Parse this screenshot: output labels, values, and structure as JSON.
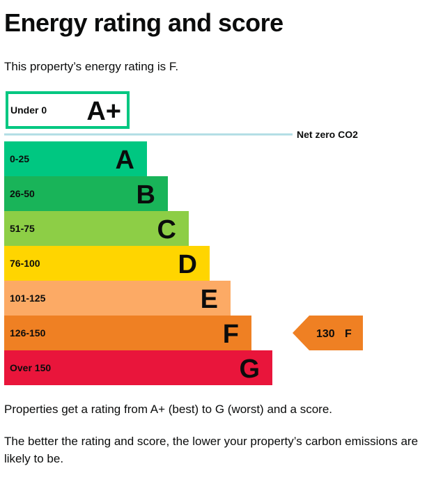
{
  "page": {
    "heading": "Energy rating and score",
    "intro": "This property’s energy rating is F.",
    "paragraph_1": "Properties get a rating from A+ (best) to G (worst) and a score.",
    "paragraph_2": "The better the rating and score, the lower your property’s carbon emissions are likely to be."
  },
  "chart_data": {
    "type": "bar",
    "top_band": {
      "range": "Under 0",
      "letter": "A+",
      "color": "#00c781",
      "style": "outlined"
    },
    "net_zero_label": "Net zero CO2",
    "net_zero_line_color": "#b1dde4",
    "bands": [
      {
        "range": "0-25",
        "letter": "A",
        "color": "#00c781"
      },
      {
        "range": "26-50",
        "letter": "B",
        "color": "#19b459"
      },
      {
        "range": "51-75",
        "letter": "C",
        "color": "#8dce46"
      },
      {
        "range": "76-100",
        "letter": "D",
        "color": "#ffd500"
      },
      {
        "range": "101-125",
        "letter": "E",
        "color": "#fcaa65"
      },
      {
        "range": "126-150",
        "letter": "F",
        "color": "#ef8023"
      },
      {
        "range": "Over 150",
        "letter": "G",
        "color": "#e9153b"
      }
    ],
    "current": {
      "score": "130",
      "letter": "F",
      "band_index": 5,
      "color": "#ef8023"
    }
  }
}
